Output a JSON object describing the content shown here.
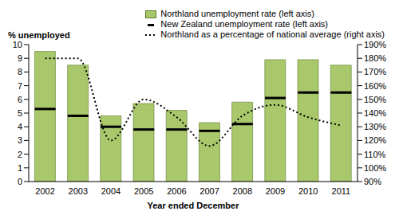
{
  "chart_data": {
    "type": "bar",
    "y_label": "% unemployed",
    "x_label": "Year ended December",
    "categories": [
      "2002",
      "2003",
      "2004",
      "2005",
      "2006",
      "2007",
      "2008",
      "2009",
      "2010",
      "2011"
    ],
    "series": [
      {
        "name": "Northland unemployment rate (left axis)",
        "type": "bar",
        "color": "#a9c86b",
        "values": [
          9.5,
          8.5,
          4.8,
          5.7,
          5.2,
          4.3,
          5.8,
          8.9,
          8.9,
          8.5
        ]
      },
      {
        "name": "New Zealand unemployment rate (left axis)",
        "type": "line",
        "line_style": "none",
        "marker": "dash",
        "color": "#000000",
        "values": [
          5.3,
          4.8,
          4.0,
          3.8,
          3.8,
          3.7,
          4.2,
          6.1,
          6.5,
          6.5
        ]
      },
      {
        "name": "Northland as a percentage of national average (right axis)",
        "type": "line",
        "line_style": "dotted",
        "color": "#000000",
        "axis": "y2",
        "values": [
          180,
          180,
          120,
          150,
          137,
          116,
          138,
          146,
          137,
          131
        ]
      }
    ],
    "ylim": [
      0,
      10
    ],
    "yticks": [
      0,
      1,
      2,
      3,
      4,
      5,
      6,
      7,
      8,
      9,
      10
    ],
    "y2lim": [
      90,
      190
    ],
    "y2ticks": [
      {
        "value": 90,
        "label": "90%"
      },
      {
        "value": 100,
        "label": "100%"
      },
      {
        "value": 110,
        "label": "110%"
      },
      {
        "value": 120,
        "label": "120%"
      },
      {
        "value": 130,
        "label": "130%"
      },
      {
        "value": 140,
        "label": "140%"
      },
      {
        "value": 150,
        "label": "150%"
      },
      {
        "value": 160,
        "label": "160%"
      },
      {
        "value": 170,
        "label": "170%"
      },
      {
        "value": 180,
        "label": "180%"
      },
      {
        "value": 190,
        "label": "190%"
      }
    ],
    "grid": false,
    "legend": "top"
  }
}
